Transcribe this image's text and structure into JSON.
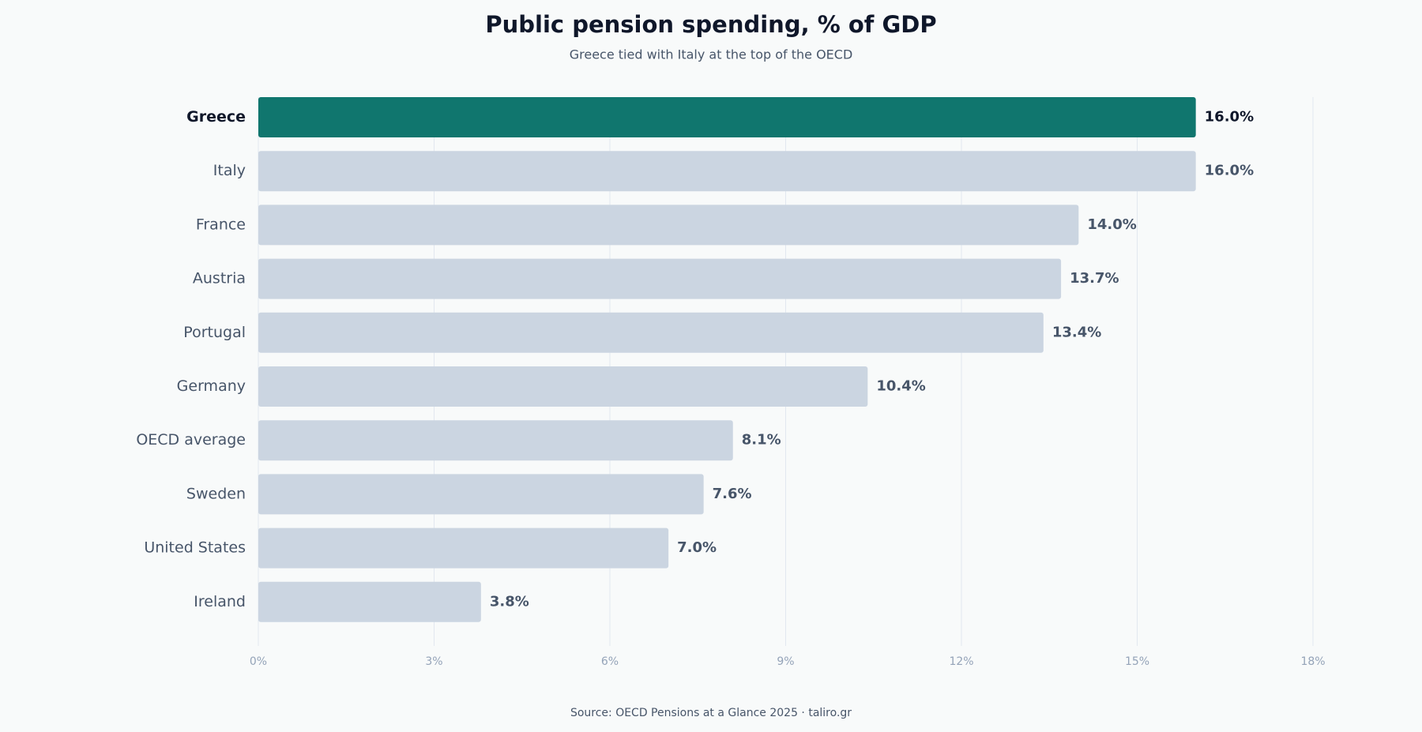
{
  "chart_data": {
    "type": "barh",
    "title": "Public pension spending, % of GDP",
    "subtitle": "Greece tied with Italy at the top of the OECD",
    "source": "Source: OECD Pensions at a Glance 2025 · taliro.gr",
    "categories": [
      "Greece",
      "Italy",
      "France",
      "Austria",
      "Portugal",
      "Germany",
      "OECD average",
      "Sweden",
      "United States",
      "Ireland"
    ],
    "values": [
      16.0,
      16.0,
      14.0,
      13.7,
      13.4,
      10.4,
      8.1,
      7.6,
      7.0,
      3.8
    ],
    "value_labels": [
      "16.0%",
      "16.0%",
      "14.0%",
      "13.7%",
      "13.4%",
      "10.4%",
      "8.1%",
      "7.6%",
      "7.0%",
      "3.8%"
    ],
    "colors": [
      "#10766e",
      "#cbd5e1",
      "#cbd5e1",
      "#cbd5e1",
      "#cbd5e1",
      "#cbd5e1",
      "#cbd5e1",
      "#cbd5e1",
      "#cbd5e1",
      "#cbd5e1"
    ],
    "highlight_color": "#10766e",
    "xlim": [
      0,
      18
    ],
    "xticks": [
      {
        "value": 0,
        "label": "0%"
      },
      {
        "value": 3,
        "label": "3%"
      },
      {
        "value": 6,
        "label": "6%"
      },
      {
        "value": 9,
        "label": "9%"
      },
      {
        "value": 12,
        "label": "12%"
      },
      {
        "value": 15,
        "label": "15%"
      },
      {
        "value": 18,
        "label": "18%"
      }
    ],
    "grid": true
  }
}
